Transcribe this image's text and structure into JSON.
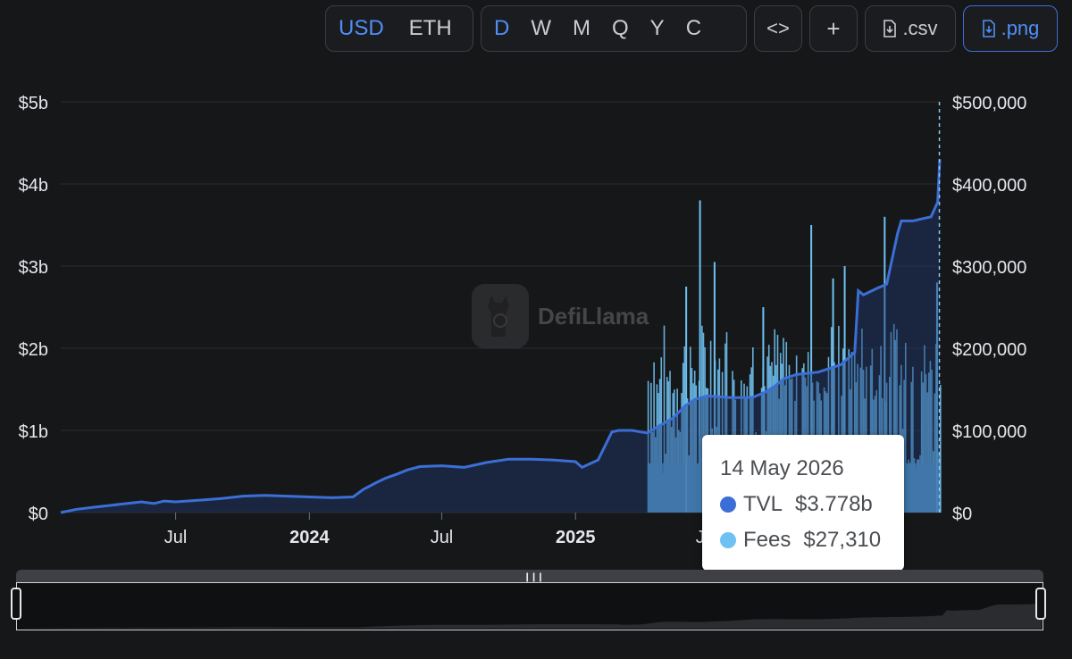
{
  "toolbar": {
    "currency": {
      "options": [
        "USD",
        "ETH"
      ],
      "selected": "USD"
    },
    "interval": {
      "options": [
        "D",
        "W",
        "M",
        "Q",
        "Y",
        "C"
      ],
      "selected": "D"
    },
    "embed_label": "<>",
    "add_label": "+",
    "csv_label": ".csv",
    "png_label": ".png"
  },
  "watermark": {
    "text": "DefiLlama"
  },
  "tooltip": {
    "date": "14 May 2026",
    "rows": [
      {
        "label": "TVL",
        "value": "$3.778b",
        "color": "#3b6fd6"
      },
      {
        "label": "Fees",
        "value": "$27,310",
        "color": "#6ec1f2"
      }
    ]
  },
  "chart_data": {
    "type": "line",
    "title": "",
    "xlabel": "",
    "x_ticks": [
      {
        "label": "Jul",
        "x": "2023-07-01",
        "bold": false
      },
      {
        "label": "2024",
        "x": "2024-01-01",
        "bold": true
      },
      {
        "label": "Jul",
        "x": "2024-07-01",
        "bold": false
      },
      {
        "label": "2025",
        "x": "2025-01-01",
        "bold": true
      },
      {
        "label": "Jul",
        "x": "2025-07-01",
        "bold": false
      }
    ],
    "x_range": [
      "2023-01-24",
      "2026-05-17"
    ],
    "y_left": {
      "label": "TVL",
      "ticks": [
        "$0",
        "$1b",
        "$2b",
        "$3b",
        "$4b",
        "$5b"
      ],
      "range": [
        0,
        5000000000
      ]
    },
    "y_right": {
      "label": "Fees",
      "ticks": [
        "$0",
        "$100,000",
        "$200,000",
        "$300,000",
        "$400,000",
        "$500,000"
      ],
      "range": [
        0,
        500000
      ]
    },
    "grid": true,
    "series": [
      {
        "name": "TVL",
        "type": "line",
        "axis": "left",
        "color": "#3b6fd6",
        "points": [
          [
            "2023-01-24",
            0.0
          ],
          [
            "2023-02-15",
            0.04
          ],
          [
            "2023-03-15",
            0.07
          ],
          [
            "2023-04-15",
            0.1
          ],
          [
            "2023-05-15",
            0.13
          ],
          [
            "2023-06-01",
            0.11
          ],
          [
            "2023-06-15",
            0.14
          ],
          [
            "2023-07-01",
            0.13
          ],
          [
            "2023-08-01",
            0.15
          ],
          [
            "2023-09-01",
            0.17
          ],
          [
            "2023-10-01",
            0.2
          ],
          [
            "2023-11-01",
            0.21
          ],
          [
            "2023-12-01",
            0.2
          ],
          [
            "2024-01-01",
            0.19
          ],
          [
            "2024-02-01",
            0.18
          ],
          [
            "2024-03-01",
            0.19
          ],
          [
            "2024-03-15",
            0.28
          ],
          [
            "2024-04-01",
            0.36
          ],
          [
            "2024-04-15",
            0.42
          ],
          [
            "2024-05-01",
            0.47
          ],
          [
            "2024-05-15",
            0.52
          ],
          [
            "2024-06-01",
            0.56
          ],
          [
            "2024-07-01",
            0.57
          ],
          [
            "2024-08-01",
            0.55
          ],
          [
            "2024-09-01",
            0.61
          ],
          [
            "2024-10-01",
            0.65
          ],
          [
            "2024-11-01",
            0.65
          ],
          [
            "2024-12-01",
            0.64
          ],
          [
            "2025-01-01",
            0.62
          ],
          [
            "2025-01-10",
            0.55
          ],
          [
            "2025-02-01",
            0.64
          ],
          [
            "2025-02-20",
            0.98
          ],
          [
            "2025-03-01",
            1.0
          ],
          [
            "2025-03-20",
            1.0
          ],
          [
            "2025-04-01",
            0.98
          ],
          [
            "2025-04-10",
            0.97
          ],
          [
            "2025-04-25",
            1.05
          ],
          [
            "2025-05-15",
            1.15
          ],
          [
            "2025-06-01",
            1.3
          ],
          [
            "2025-06-15",
            1.38
          ],
          [
            "2025-07-01",
            1.42
          ],
          [
            "2025-08-01",
            1.4
          ],
          [
            "2025-09-01",
            1.4
          ],
          [
            "2025-09-20",
            1.47
          ],
          [
            "2025-10-01",
            1.53
          ],
          [
            "2025-10-15",
            1.63
          ],
          [
            "2025-11-01",
            1.68
          ],
          [
            "2025-12-01",
            1.71
          ],
          [
            "2026-01-01",
            1.8
          ],
          [
            "2026-01-20",
            1.95
          ],
          [
            "2026-01-25",
            2.7
          ],
          [
            "2026-02-01",
            2.65
          ],
          [
            "2026-02-20",
            2.73
          ],
          [
            "2026-03-05",
            2.78
          ],
          [
            "2026-03-20",
            3.4
          ],
          [
            "2026-03-25",
            3.55
          ],
          [
            "2026-04-10",
            3.55
          ],
          [
            "2026-04-25",
            3.58
          ],
          [
            "2026-05-05",
            3.6
          ],
          [
            "2026-05-14",
            3.778
          ],
          [
            "2026-05-17",
            4.3
          ]
        ]
      },
      {
        "name": "Fees",
        "type": "bar",
        "axis": "right",
        "color": "#6ec1f2",
        "start": "2025-04-10",
        "end": "2026-05-17",
        "typical_low": 150000,
        "typical_high": 230000,
        "spikes": [
          [
            "2025-06-20",
            380000
          ],
          [
            "2025-06-01",
            275000
          ],
          [
            "2025-07-10",
            305000
          ],
          [
            "2025-09-15",
            250000
          ],
          [
            "2025-11-20",
            350000
          ],
          [
            "2025-12-20",
            285000
          ],
          [
            "2026-01-05",
            300000
          ],
          [
            "2026-03-01",
            360000
          ],
          [
            "2026-05-12",
            280000
          ]
        ],
        "highlight": {
          "x": "2026-05-14",
          "value": 27310
        }
      }
    ]
  }
}
